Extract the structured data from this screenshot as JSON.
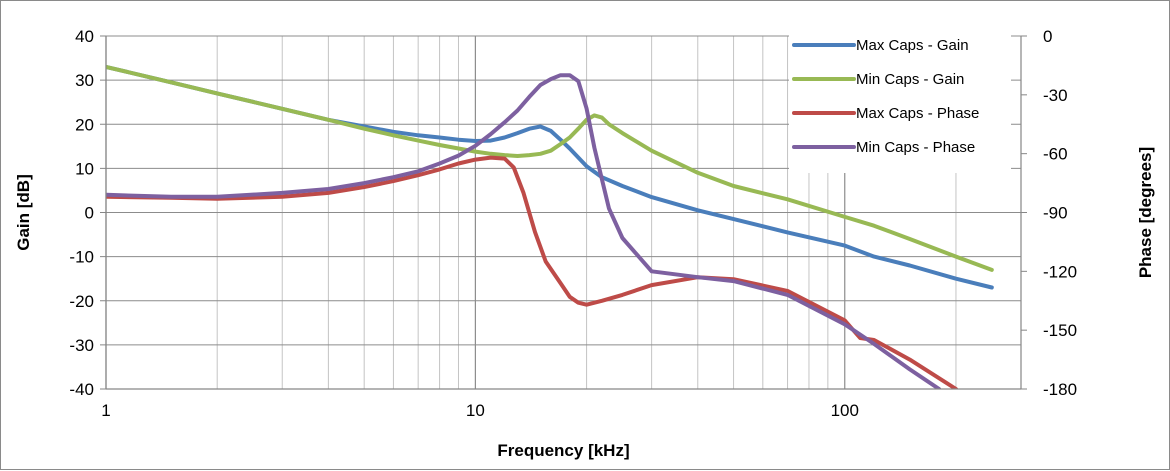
{
  "chart_data": {
    "type": "line",
    "xlabel": "Frequency [kHz]",
    "ylabel": "Gain [dB]",
    "y2label": "Phase [degrees]",
    "xscale": "log",
    "xlim": [
      1,
      300
    ],
    "ylim": [
      -40,
      40
    ],
    "y2lim": [
      -180,
      0
    ],
    "x_ticks": [
      1,
      10,
      100
    ],
    "x_tick_labels": [
      "1",
      "10",
      "100"
    ],
    "y_ticks": [
      40,
      30,
      20,
      10,
      0,
      -10,
      -20,
      -30,
      -40
    ],
    "y_tick_labels": [
      "40",
      "30",
      "20",
      "10",
      "0",
      "-10",
      "-20",
      "-30",
      "-40"
    ],
    "y2_ticks": [
      0,
      -30,
      -60,
      -90,
      -120,
      -150,
      -180
    ],
    "y2_tick_labels": [
      "0",
      "-30",
      "-60",
      "-90",
      "-120",
      "-150",
      "-180"
    ],
    "grid": "major and minor vertical (log x), major horizontal",
    "legend": "top-right",
    "series": [
      {
        "name": "Max Caps - Gain",
        "axis": "left",
        "color": "#4a7ebb",
        "x": [
          1,
          1.5,
          2,
          3,
          4,
          5,
          6,
          7,
          8,
          9,
          10,
          11,
          12,
          13,
          14,
          15,
          16,
          17,
          18,
          20,
          22,
          25,
          30,
          40,
          50,
          70,
          100,
          120,
          150,
          200,
          250
        ],
        "y": [
          33,
          29.5,
          27,
          23.5,
          21,
          19.5,
          18.3,
          17.5,
          17,
          16.5,
          16.2,
          16.3,
          17,
          18,
          19,
          19.5,
          18.5,
          16.5,
          14.5,
          10.5,
          8,
          6,
          3.5,
          0.5,
          -1.5,
          -4.5,
          -7.5,
          -10,
          -12,
          -15,
          -17
        ]
      },
      {
        "name": "Min Caps - Gain",
        "axis": "left",
        "color": "#98b954",
        "x": [
          1,
          1.5,
          2,
          3,
          4,
          5,
          6,
          7,
          8,
          9,
          10,
          11,
          12,
          13,
          14,
          15,
          16,
          17,
          18,
          19,
          20,
          21,
          22,
          23,
          25,
          30,
          40,
          50,
          70,
          100,
          120,
          150,
          200,
          250
        ],
        "y": [
          33,
          29.5,
          27,
          23.5,
          21,
          19,
          17.5,
          16.3,
          15.3,
          14.5,
          13.8,
          13.3,
          13,
          12.8,
          13,
          13.3,
          14,
          15.5,
          17,
          19,
          21,
          22,
          21.5,
          20,
          18,
          14,
          9,
          6,
          3,
          -1,
          -3,
          -6,
          -10,
          -13
        ]
      },
      {
        "name": "Max Caps - Phase",
        "axis": "right",
        "color": "#be4b48",
        "x": [
          1,
          1.5,
          2,
          3,
          4,
          5,
          6,
          7,
          8,
          9,
          10,
          11,
          12,
          12.7,
          13.5,
          14.5,
          15.5,
          17,
          18,
          19,
          20,
          22,
          25,
          30,
          40,
          50,
          70,
          100,
          110,
          120,
          150,
          200
        ],
        "y": [
          -82,
          -82.5,
          -83,
          -82,
          -80,
          -77,
          -74,
          -71,
          -68,
          -65,
          -63,
          -62,
          -62.5,
          -67,
          -80,
          -100,
          -115,
          -126,
          -133,
          -136,
          -137,
          -135,
          -132,
          -127,
          -123,
          -124,
          -130,
          -145,
          -154,
          -155,
          -165,
          -180
        ]
      },
      {
        "name": "Min Caps - Phase",
        "axis": "right",
        "color": "#7d60a0",
        "x": [
          1,
          1.5,
          2,
          3,
          4,
          5,
          6,
          7,
          8,
          9,
          10,
          11,
          12,
          13,
          14,
          15,
          16,
          17,
          18,
          19,
          20,
          21,
          22,
          23,
          25,
          30,
          40,
          50,
          70,
          100,
          120,
          150,
          180
        ],
        "y": [
          -81,
          -82,
          -82,
          -80,
          -78,
          -75,
          -72,
          -69,
          -65,
          -61,
          -56,
          -50,
          -44,
          -38,
          -31,
          -25,
          -22,
          -20,
          -20,
          -23,
          -37,
          -57,
          -73,
          -88,
          -103,
          -120,
          -123,
          -125,
          -132,
          -147,
          -157,
          -170,
          -180
        ]
      }
    ]
  }
}
